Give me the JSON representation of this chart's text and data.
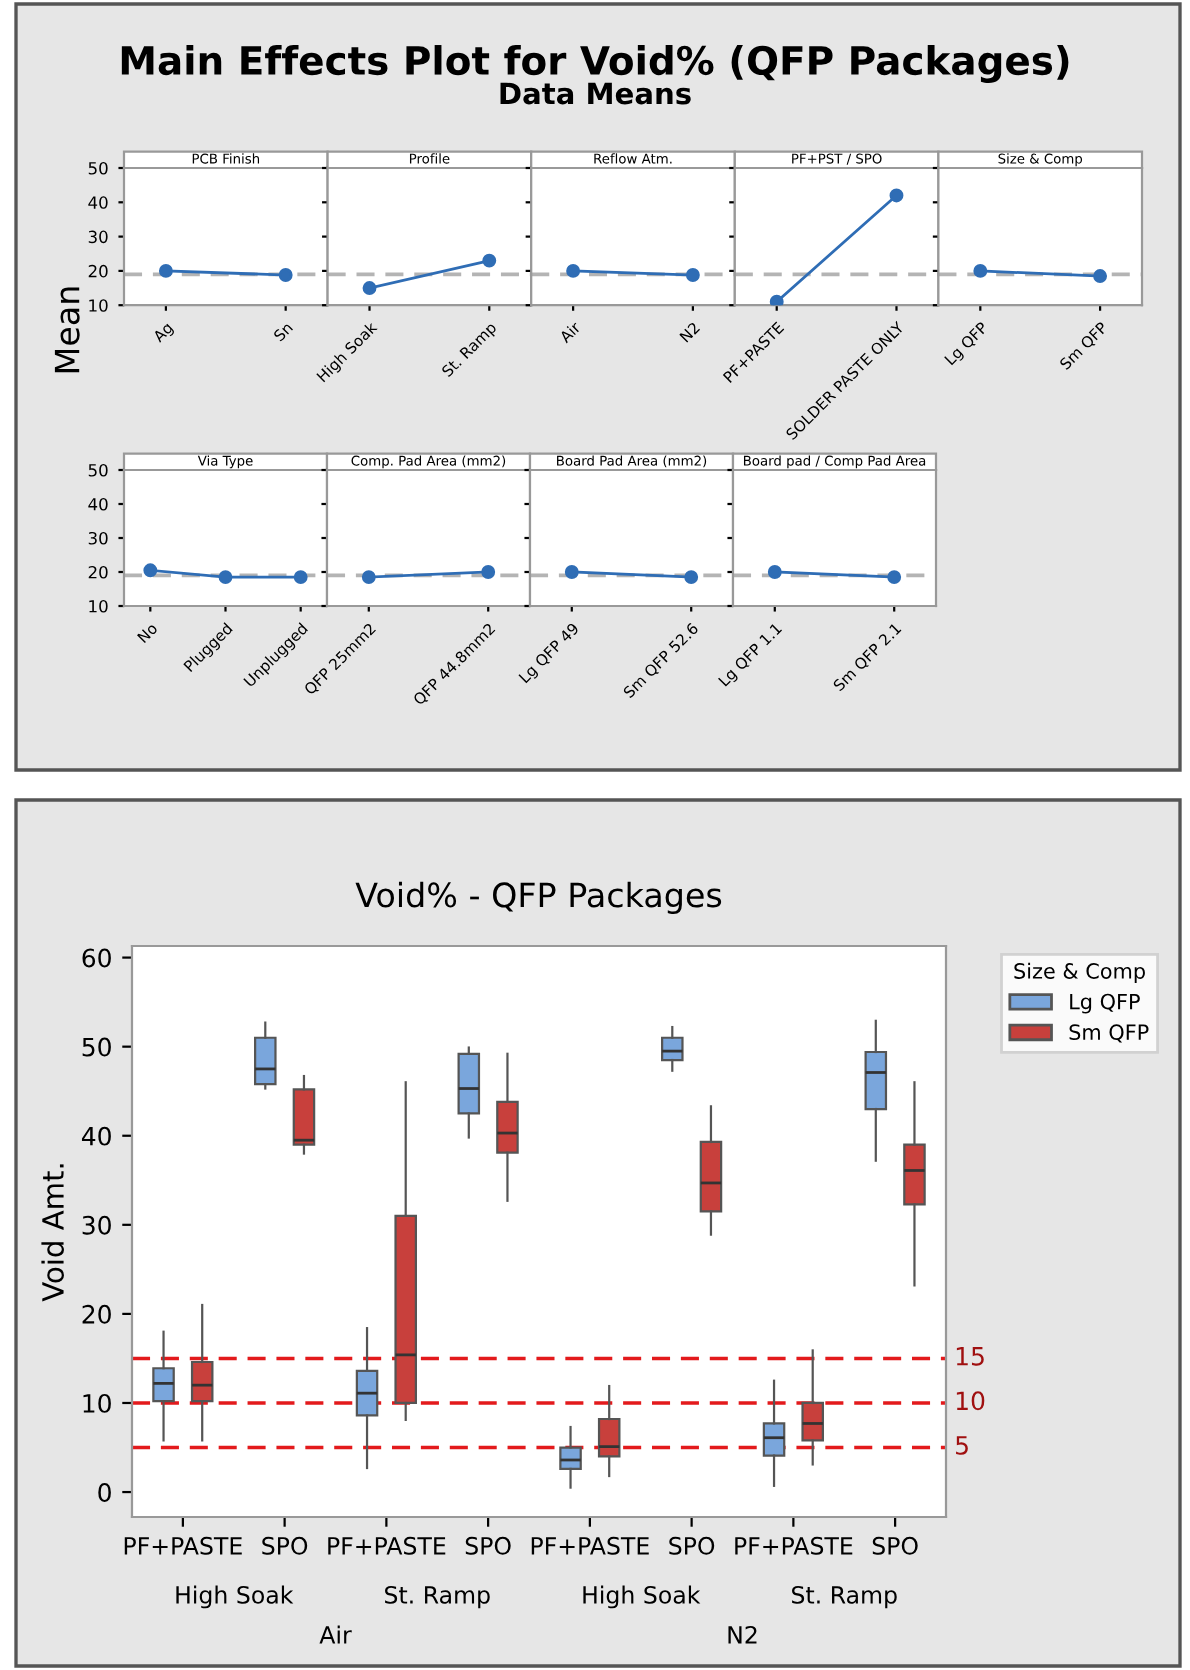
{
  "chart_data": [
    {
      "type": "other",
      "title": "Main Effects Plot for Void% (QFP Packages)",
      "subtitle": "Data Means",
      "ylabel": "Mean"
    },
    {
      "type": "line",
      "title": "PCB Finish",
      "categories": [
        "Ag",
        "Sn"
      ],
      "values": [
        20,
        18.8
      ],
      "color": "#2f6db5",
      "marker": "circle",
      "ylim": [
        10,
        50
      ],
      "yticks": [
        10,
        20,
        30,
        40,
        50
      ],
      "ref_lines": [
        {
          "axis": "y",
          "value": 19,
          "color": "#b4b4b4",
          "line_style": "dashed"
        }
      ],
      "grid": false
    },
    {
      "type": "line",
      "title": "Profile",
      "categories": [
        "High Soak",
        "St. Ramp"
      ],
      "values": [
        15,
        23
      ],
      "color": "#2f6db5",
      "marker": "circle",
      "ylim": [
        10,
        50
      ],
      "yticks": [
        10,
        20,
        30,
        40,
        50
      ],
      "tick_labels": "x",
      "ref_lines": [
        {
          "axis": "y",
          "value": 19,
          "color": "#b4b4b4",
          "line_style": "dashed"
        }
      ],
      "grid": false
    },
    {
      "type": "line",
      "title": "Reflow Atm.",
      "categories": [
        "Air",
        "N2"
      ],
      "values": [
        20,
        18.8
      ],
      "color": "#2f6db5",
      "marker": "circle",
      "ylim": [
        10,
        50
      ],
      "yticks": [
        10,
        20,
        30,
        40,
        50
      ],
      "tick_labels": "x",
      "ref_lines": [
        {
          "axis": "y",
          "value": 19,
          "color": "#b4b4b4",
          "line_style": "dashed"
        }
      ],
      "grid": false
    },
    {
      "type": "line",
      "title": "PF+PST / SPO",
      "categories": [
        "PF+PASTE",
        "SOLDER PASTE ONLY"
      ],
      "values": [
        11,
        42
      ],
      "color": "#2f6db5",
      "marker": "circle",
      "ylim": [
        10,
        50
      ],
      "yticks": [
        10,
        20,
        30,
        40,
        50
      ],
      "tick_labels": "x",
      "ref_lines": [
        {
          "axis": "y",
          "value": 19,
          "color": "#b4b4b4",
          "line_style": "dashed"
        }
      ],
      "grid": false
    },
    {
      "type": "line",
      "title": "Size & Comp",
      "categories": [
        "Lg QFP",
        "Sm QFP"
      ],
      "values": [
        20,
        18.5
      ],
      "color": "#2f6db5",
      "marker": "circle",
      "ylim": [
        10,
        50
      ],
      "yticks": [
        10,
        20,
        30,
        40,
        50
      ],
      "tick_labels": "x",
      "ref_lines": [
        {
          "axis": "y",
          "value": 19,
          "color": "#b4b4b4",
          "line_style": "dashed"
        }
      ],
      "grid": false
    },
    {
      "type": "line",
      "title": "Via Type",
      "categories": [
        "No",
        "Plugged",
        "Unplugged"
      ],
      "values": [
        20.5,
        18.5,
        18.5
      ],
      "color": "#2f6db5",
      "marker": "circle",
      "ylim": [
        10,
        50
      ],
      "yticks": [
        10,
        20,
        30,
        40,
        50
      ],
      "ref_lines": [
        {
          "axis": "y",
          "value": 19,
          "color": "#b4b4b4",
          "line_style": "dashed"
        }
      ],
      "grid": false
    },
    {
      "type": "line",
      "title": "Comp. Pad Area (mm2)",
      "categories": [
        "QFP 25mm2",
        "QFP 44.8mm2"
      ],
      "values": [
        18.5,
        20
      ],
      "color": "#2f6db5",
      "marker": "circle",
      "ylim": [
        10,
        50
      ],
      "yticks": [
        10,
        20,
        30,
        40,
        50
      ],
      "tick_labels": "x",
      "ref_lines": [
        {
          "axis": "y",
          "value": 19,
          "color": "#b4b4b4",
          "line_style": "dashed"
        }
      ],
      "grid": false
    },
    {
      "type": "line",
      "title": "Board Pad Area (mm2)",
      "categories": [
        "Lg QFP 49",
        "Sm QFP 52.6"
      ],
      "values": [
        20,
        18.5
      ],
      "color": "#2f6db5",
      "marker": "circle",
      "ylim": [
        10,
        50
      ],
      "yticks": [
        10,
        20,
        30,
        40,
        50
      ],
      "tick_labels": "x",
      "ref_lines": [
        {
          "axis": "y",
          "value": 19,
          "color": "#b4b4b4",
          "line_style": "dashed"
        }
      ],
      "grid": false
    },
    {
      "type": "line",
      "title": "Board pad / Comp Pad Area",
      "categories": [
        "Lg QFP 1.1",
        "Sm QFP 2.1"
      ],
      "values": [
        20,
        18.5
      ],
      "color": "#2f6db5",
      "marker": "circle",
      "ylim": [
        10,
        50
      ],
      "yticks": [
        10,
        20,
        30,
        40,
        50
      ],
      "tick_labels": "x",
      "ref_lines": [
        {
          "axis": "y",
          "value": 19,
          "color": "#b4b4b4",
          "line_style": "dashed"
        }
      ],
      "grid": false
    },
    {
      "type": "box",
      "title": "Void% - QFP Packages",
      "ylabel": "Void Amt.",
      "legend_title": "Size & Comp",
      "legend": "top right",
      "ylim": [
        -2.8,
        61.3
      ],
      "yticks": [
        0,
        10,
        20,
        30,
        40,
        50,
        60
      ],
      "categories": [
        "PF+PASTE",
        "SPO",
        "PF+PASTE",
        "SPO",
        "PF+PASTE",
        "SPO",
        "PF+PASTE",
        "SPO"
      ],
      "annotations": [
        "High Soak",
        "St. Ramp",
        "High Soak",
        "St. Ramp",
        "Air",
        "N2"
      ],
      "ref_lines": [
        {
          "axis": "y",
          "value": 15,
          "label": "15",
          "color": "#e31a1c",
          "line_style": "dashed"
        },
        {
          "axis": "y",
          "value": 10,
          "label": "10",
          "color": "#e31a1c",
          "line_style": "dashed"
        },
        {
          "axis": "y",
          "value": 5,
          "label": "5",
          "color": "#e31a1c",
          "line_style": "dashed"
        }
      ],
      "series": [
        {
          "name": "Lg QFP",
          "color": "#7aa6dc",
          "boxes": [
            {
              "low": 5.8,
              "q1": 10.2,
              "median": 12.2,
              "q3": 13.9,
              "high": 18
            },
            {
              "low": 45.3,
              "q1": 45.8,
              "median": 47.5,
              "q3": 51,
              "high": 52.7
            },
            {
              "low": 2.7,
              "q1": 8.6,
              "median": 11.1,
              "q3": 13.6,
              "high": 18.4
            },
            {
              "low": 39.8,
              "q1": 42.5,
              "median": 45.3,
              "q3": 49.2,
              "high": 49.9
            },
            {
              "low": 0.5,
              "q1": 2.6,
              "median": 3.6,
              "q3": 5,
              "high": 7.3
            },
            {
              "low": 47.3,
              "q1": 48.5,
              "median": 49.5,
              "q3": 51,
              "high": 52.2
            },
            {
              "low": 0.7,
              "q1": 4.1,
              "median": 6.1,
              "q3": 7.7,
              "high": 12.5
            },
            {
              "low": 37.2,
              "q1": 43,
              "median": 47.1,
              "q3": 49.4,
              "high": 52.9
            }
          ]
        },
        {
          "name": "Sm QFP",
          "color": "#c8403c",
          "boxes": [
            {
              "low": 5.8,
              "q1": 10.2,
              "median": 12,
              "q3": 14.6,
              "high": 21
            },
            {
              "low": 38,
              "q1": 39,
              "median": 39.5,
              "q3": 45.2,
              "high": 46.7
            },
            {
              "low": 8.1,
              "q1": 10,
              "median": 15.4,
              "q3": 31,
              "high": 46
            },
            {
              "low": 32.7,
              "q1": 38.1,
              "median": 40.3,
              "q3": 43.8,
              "high": 49.2
            },
            {
              "low": 1.8,
              "q1": 4,
              "median": 5.1,
              "q3": 8.2,
              "high": 11.9
            },
            {
              "low": 28.9,
              "q1": 31.5,
              "median": 34.7,
              "q3": 39.3,
              "high": 43.3
            },
            {
              "low": 3.1,
              "q1": 5.8,
              "median": 7.7,
              "q3": 10,
              "high": 15.9
            },
            {
              "low": 23.2,
              "q1": 32.3,
              "median": 36.1,
              "q3": 39,
              "high": 46
            }
          ]
        }
      ]
    }
  ]
}
